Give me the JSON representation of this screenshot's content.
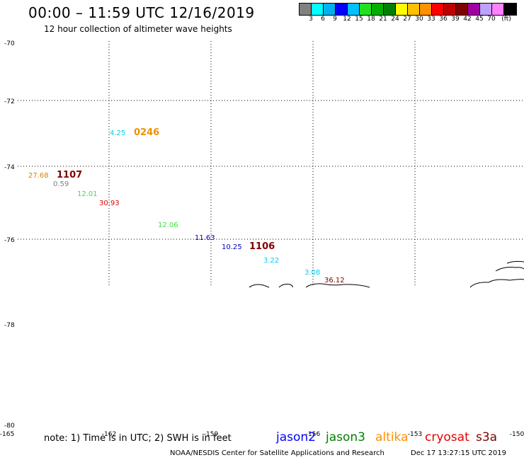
{
  "title": "00:00 – 11:59 UTC 12/16/2019",
  "subtitle": "12 hour collection of altimeter wave heights",
  "colorbar": {
    "colors": [
      "#808080",
      "#00ffff",
      "#00b0f0",
      "#0000ff",
      "#00c0ff",
      "#20e020",
      "#00b000",
      "#008000",
      "#ffff00",
      "#ffc000",
      "#ff9000",
      "#ff0000",
      "#c00000",
      "#800000",
      "#a000a0",
      "#c0a0ff",
      "#ff80ff",
      "#000000"
    ],
    "labels": [
      "3",
      "6",
      "9",
      "12",
      "15",
      "18",
      "21",
      "24",
      "27",
      "30",
      "33",
      "36",
      "39",
      "42",
      "45",
      "70",
      "(ft)"
    ]
  },
  "axes": {
    "lat_labels": [
      "-70",
      "-72",
      "-74",
      "-76",
      "-78",
      "-80"
    ],
    "lon_labels": [
      "-165",
      "-162",
      "-159",
      "-156",
      "-153",
      "-150"
    ]
  },
  "observations": [
    {
      "text": "4.25",
      "color": "#00d0f0"
    },
    {
      "text": "0246",
      "color": "#f09000",
      "bold": true
    },
    {
      "text": "27.68",
      "color": "#e08000"
    },
    {
      "text": "1107",
      "color": "#800000",
      "bold": true
    },
    {
      "text": "0.59",
      "color": "#808080"
    },
    {
      "text": "12.01",
      "color": "#40e040"
    },
    {
      "text": "30.93",
      "color": "#e00000"
    },
    {
      "text": "12.06",
      "color": "#40e040"
    },
    {
      "text": "11.63",
      "color": "#0000c0"
    },
    {
      "text": "10.25",
      "color": "#0000c0"
    },
    {
      "text": "1106",
      "color": "#800000",
      "bold": true
    },
    {
      "text": "3.22",
      "color": "#00d0f0"
    },
    {
      "text": "3.08",
      "color": "#00d0f0"
    },
    {
      "text": "36.12",
      "color": "#800000"
    }
  ],
  "note": "note: 1) Time is in UTC; 2) SWH is in feet",
  "satellites": [
    {
      "name": "jason2",
      "color": "#0000ff"
    },
    {
      "name": "jason3",
      "color": "#008000"
    },
    {
      "name": "altika",
      "color": "#ff9000"
    },
    {
      "name": "cryosat",
      "color": "#e00000"
    },
    {
      "name": "s3a",
      "color": "#800000"
    }
  ],
  "footer": {
    "agency": "NOAA/NESDIS Center for Satellite Applications and Research",
    "timestamp": "Dec 17 13:27:15 UTC 2019"
  }
}
